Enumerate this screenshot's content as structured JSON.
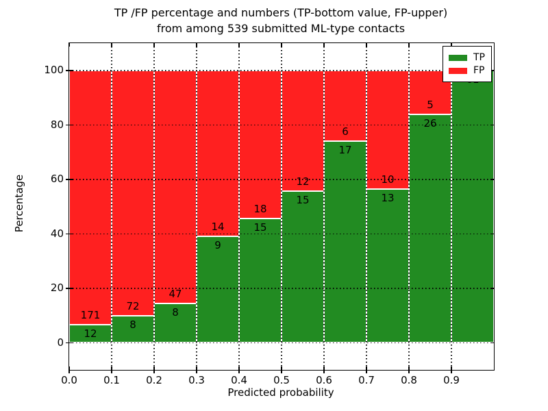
{
  "chart_data": {
    "type": "bar",
    "stacked": true,
    "normalized": "percent",
    "title_line1": "TP /FP percentage and numbers (TP-bottom value, FP-upper)",
    "title_line2": "from among 539 submitted ML-type contacts",
    "xlabel": "Predicted probability",
    "ylabel": "Percentage",
    "total_contacts": 539,
    "xlim": [
      0.0,
      1.0
    ],
    "ylim": [
      -10,
      110
    ],
    "grid": "dotted",
    "x_ticks": [
      0.0,
      0.1,
      0.2,
      0.3,
      0.4,
      0.5,
      0.6,
      0.7,
      0.8,
      0.9
    ],
    "x_tick_labels": [
      "0.0",
      "0.1",
      "0.2",
      "0.3",
      "0.4",
      "0.5",
      "0.6",
      "0.7",
      "0.8",
      "0.9"
    ],
    "y_ticks": [
      0,
      20,
      40,
      60,
      80,
      100
    ],
    "y_tick_labels": [
      "0",
      "20",
      "40",
      "60",
      "80",
      "100"
    ],
    "bin_width": 0.1,
    "legend": {
      "position": "upper right",
      "entries": [
        {
          "label": "TP",
          "color": "#228b22"
        },
        {
          "label": "FP",
          "color": "#ff2020"
        }
      ]
    },
    "bins": [
      {
        "x_start": 0.0,
        "x_end": 0.1,
        "tp": 12,
        "fp": 171,
        "tp_pct": 6.6
      },
      {
        "x_start": 0.1,
        "x_end": 0.2,
        "tp": 8,
        "fp": 72,
        "tp_pct": 10.0
      },
      {
        "x_start": 0.2,
        "x_end": 0.3,
        "tp": 8,
        "fp": 47,
        "tp_pct": 14.5
      },
      {
        "x_start": 0.3,
        "x_end": 0.4,
        "tp": 9,
        "fp": 14,
        "tp_pct": 39.1
      },
      {
        "x_start": 0.4,
        "x_end": 0.5,
        "tp": 15,
        "fp": 18,
        "tp_pct": 45.5
      },
      {
        "x_start": 0.5,
        "x_end": 0.6,
        "tp": 15,
        "fp": 12,
        "tp_pct": 55.6
      },
      {
        "x_start": 0.6,
        "x_end": 0.7,
        "tp": 17,
        "fp": 6,
        "tp_pct": 73.9
      },
      {
        "x_start": 0.7,
        "x_end": 0.8,
        "tp": 13,
        "fp": 10,
        "tp_pct": 56.5
      },
      {
        "x_start": 0.8,
        "x_end": 0.9,
        "tp": 26,
        "fp": 5,
        "tp_pct": 83.9
      },
      {
        "x_start": 0.9,
        "x_end": 1.0,
        "tp": 61,
        "fp": 0,
        "tp_pct": 100.0
      }
    ]
  }
}
